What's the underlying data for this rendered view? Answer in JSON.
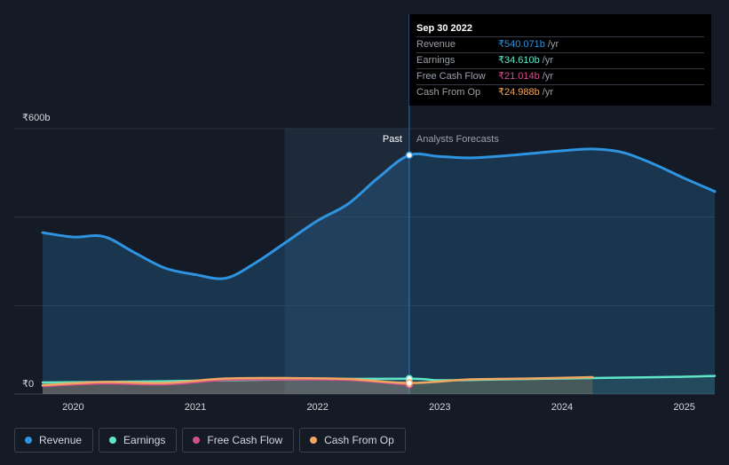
{
  "chart_data": {
    "type": "area",
    "x_unit": "year",
    "xlim": [
      2019.75,
      2025.25
    ],
    "ylim": [
      0,
      600
    ],
    "y_tick_labels": [
      {
        "value": 600,
        "label": "₹600b"
      },
      {
        "value": 0,
        "label": "₹0"
      }
    ],
    "x_ticks": [
      2020,
      2021,
      2022,
      2023,
      2024,
      2025
    ],
    "x_tick_labels": [
      "2020",
      "2021",
      "2022",
      "2023",
      "2024",
      "2025"
    ],
    "past_label": "Past",
    "forecast_label": "Analysts Forecasts",
    "divider_x": 2022.75,
    "past_shade_start": 2021.73,
    "series": [
      {
        "name": "Revenue",
        "color": "#2e93e0",
        "points": [
          [
            2019.75,
            365
          ],
          [
            2020.0,
            355
          ],
          [
            2020.25,
            356
          ],
          [
            2020.5,
            320
          ],
          [
            2020.75,
            285
          ],
          [
            2021.0,
            270
          ],
          [
            2021.25,
            262
          ],
          [
            2021.5,
            298
          ],
          [
            2021.75,
            345
          ],
          [
            2022.0,
            392
          ],
          [
            2022.25,
            430
          ],
          [
            2022.5,
            490
          ],
          [
            2022.75,
            540
          ],
          [
            2023.0,
            537
          ],
          [
            2023.25,
            534
          ],
          [
            2023.5,
            538
          ],
          [
            2023.75,
            544
          ],
          [
            2024.0,
            550
          ],
          [
            2024.25,
            554
          ],
          [
            2024.5,
            546
          ],
          [
            2024.75,
            520
          ],
          [
            2025.0,
            488
          ],
          [
            2025.25,
            458
          ]
        ]
      },
      {
        "name": "Earnings",
        "color": "#5fe6c9",
        "points": [
          [
            2019.75,
            26
          ],
          [
            2020.5,
            28
          ],
          [
            2021.0,
            30
          ],
          [
            2021.75,
            33
          ],
          [
            2022.75,
            34.6
          ],
          [
            2023.0,
            31
          ],
          [
            2023.5,
            33
          ],
          [
            2024.0,
            35
          ],
          [
            2024.5,
            37
          ],
          [
            2025.0,
            39
          ],
          [
            2025.25,
            41
          ]
        ]
      },
      {
        "name": "Free Cash Flow",
        "color": "#d64e8a",
        "points": [
          [
            2019.75,
            18
          ],
          [
            2020.25,
            24
          ],
          [
            2020.75,
            22
          ],
          [
            2021.25,
            32
          ],
          [
            2021.75,
            33
          ],
          [
            2022.25,
            32
          ],
          [
            2022.75,
            21
          ]
        ]
      },
      {
        "name": "Cash From Op",
        "color": "#f0a860",
        "points": [
          [
            2019.75,
            20
          ],
          [
            2020.25,
            27
          ],
          [
            2020.75,
            25
          ],
          [
            2021.25,
            35
          ],
          [
            2021.75,
            36
          ],
          [
            2022.25,
            34
          ],
          [
            2022.75,
            25
          ],
          [
            2023.25,
            33
          ],
          [
            2023.75,
            35
          ],
          [
            2024.25,
            38
          ]
        ]
      }
    ]
  },
  "tooltip": {
    "date": "Sep 30 2022",
    "rows": [
      {
        "label": "Revenue",
        "value": "₹540.071b",
        "unit": "/yr",
        "color": "#2e93e0"
      },
      {
        "label": "Earnings",
        "value": "₹34.610b",
        "unit": "/yr",
        "color": "#5fe6c9"
      },
      {
        "label": "Free Cash Flow",
        "value": "₹21.014b",
        "unit": "/yr",
        "color": "#d64e8a"
      },
      {
        "label": "Cash From Op",
        "value": "₹24.988b",
        "unit": "/yr",
        "color": "#f0a860"
      }
    ]
  },
  "legend": [
    {
      "label": "Revenue",
      "color": "#2e93e0"
    },
    {
      "label": "Earnings",
      "color": "#5fe6c9"
    },
    {
      "label": "Free Cash Flow",
      "color": "#d64e8a"
    },
    {
      "label": "Cash From Op",
      "color": "#f0a860"
    }
  ],
  "colors": {
    "background": "#151b26",
    "gridline": "#2c333e",
    "past_shade": "#1e2a3a"
  }
}
